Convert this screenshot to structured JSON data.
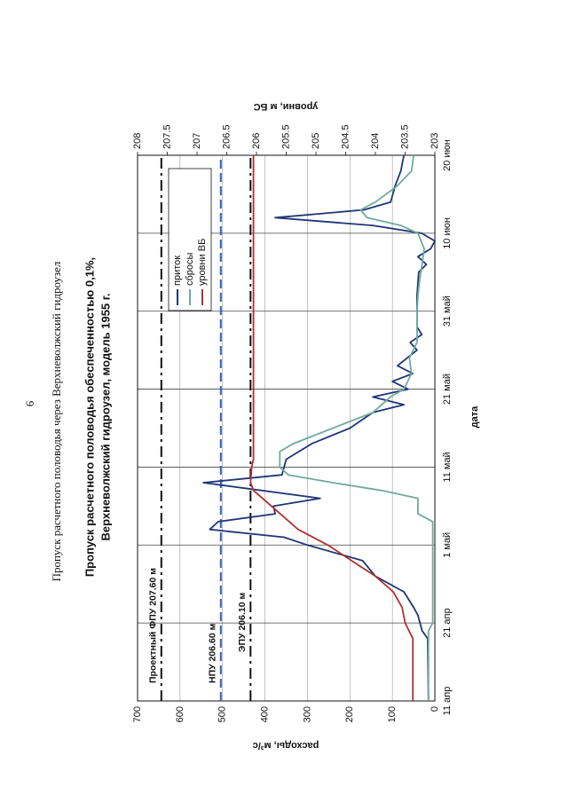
{
  "page_number": "6",
  "header": "Пропуск расчетного половодья через Верхневолжский гидроузел",
  "chart_data": {
    "type": "line",
    "title": [
      "Пропуск расчетного половодья обеспеченностью 0,1%,",
      "Верхневолжский гидроузел, модель 1955 г."
    ],
    "xlabel": "дата",
    "ylabel": "расходы, м³/с",
    "y2label": "уровни, м БС",
    "xlim": [
      "04-11",
      "06-20"
    ],
    "xticks": [
      {
        "value": "04-11",
        "label": "11 апр"
      },
      {
        "value": "04-21",
        "label": "21 апр"
      },
      {
        "value": "05-01",
        "label": "1 май"
      },
      {
        "value": "05-11",
        "label": "11 май"
      },
      {
        "value": "05-21",
        "label": "21 май"
      },
      {
        "value": "05-31",
        "label": "31 май"
      },
      {
        "value": "06-10",
        "label": "10 июн"
      },
      {
        "value": "06-20",
        "label": "20 июн"
      }
    ],
    "ylim": [
      0,
      700
    ],
    "yticks": [
      0,
      100,
      200,
      300,
      400,
      500,
      600,
      700
    ],
    "y2lim": [
      203,
      208
    ],
    "y2ticks": [
      203,
      203.5,
      204,
      204.5,
      205,
      205.5,
      206,
      206.5,
      207,
      207.5,
      208
    ],
    "grid": true,
    "legend": "upper right",
    "reference_lines": [
      {
        "label": "Проектный ФПУ 207.60 м",
        "value": 207.6,
        "color": "#111111",
        "dash": "dash-dot",
        "axis": "y2"
      },
      {
        "label": "НПУ 206.60 м",
        "value": 206.6,
        "color": "#2f5fc0",
        "dash": "dashed",
        "axis": "y2"
      },
      {
        "label": "ЭПУ 206.10 м",
        "value": 206.1,
        "color": "#111111",
        "dash": "dash-dot",
        "axis": "y2"
      }
    ],
    "series": [
      {
        "name": "приток",
        "color": "#1f3577",
        "x": [
          "04-11",
          "04-19",
          "04-20",
          "04-22",
          "04-23",
          "04-25",
          "04-27",
          "04-29",
          "05-01",
          "05-02",
          "05-03",
          "05-04",
          "05-05",
          "05-06",
          "05-07",
          "05-09",
          "05-10",
          "05-12",
          "05-14",
          "05-16",
          "05-18",
          "05-19",
          "05-20",
          "05-21",
          "05-22",
          "05-23",
          "05-24",
          "05-26",
          "05-27",
          "05-28",
          "05-29",
          "06-02",
          "06-05",
          "06-06",
          "06-07",
          "06-08",
          "06-09",
          "06-10",
          "06-11",
          "06-12",
          "06-13",
          "06-14",
          "06-16",
          "06-18",
          "06-20"
        ],
        "values": [
          15,
          17,
          30,
          40,
          50,
          73,
          140,
          170,
          300,
          355,
          530,
          510,
          376,
          380,
          270,
          545,
          360,
          350,
          290,
          200,
          146,
          73,
          146,
          63,
          100,
          52,
          88,
          42,
          58,
          31,
          42,
          42,
          38,
          20,
          40,
          10,
          0,
          31,
          146,
          376,
          167,
          104,
          94,
          80,
          73
        ]
      },
      {
        "name": "сбросы",
        "color": "#6fab9c",
        "x": [
          "04-11",
          "04-20",
          "04-21",
          "05-04",
          "05-05",
          "05-07",
          "05-08",
          "05-09",
          "05-10",
          "05-11",
          "05-13",
          "05-14",
          "05-16",
          "05-18",
          "05-20",
          "05-21",
          "05-23",
          "05-25",
          "05-27",
          "05-31",
          "06-02",
          "06-04",
          "06-06",
          "06-08",
          "06-10",
          "06-11",
          "06-12",
          "06-13",
          "06-14",
          "06-16",
          "06-18",
          "06-20"
        ],
        "values": [
          15,
          15,
          5,
          5,
          40,
          40,
          125,
          240,
          345,
          365,
          365,
          334,
          240,
          146,
          105,
          73,
          55,
          60,
          42,
          42,
          40,
          36,
          30,
          25,
          40,
          80,
          160,
          175,
          140,
          90,
          55,
          50
        ]
      },
      {
        "name": "уровни ВБ",
        "color": "#b0302e",
        "axis": "y2",
        "x": [
          "04-11",
          "04-19",
          "04-21",
          "04-23",
          "04-25",
          "04-27",
          "04-29",
          "05-01",
          "05-03",
          "05-05",
          "05-07",
          "05-08",
          "05-09",
          "05-11",
          "05-12",
          "06-20"
        ],
        "values": [
          203.37,
          203.37,
          203.5,
          203.55,
          203.7,
          204.0,
          204.4,
          204.8,
          205.3,
          205.6,
          205.9,
          206.05,
          206.1,
          206.08,
          206.05,
          206.05
        ]
      }
    ]
  }
}
